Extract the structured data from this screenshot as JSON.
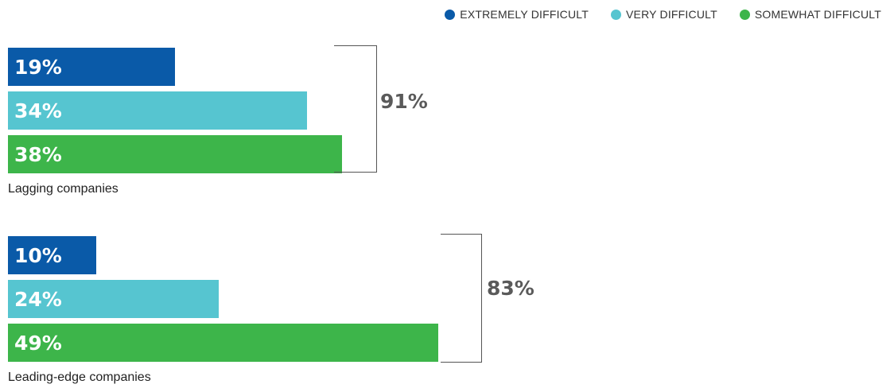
{
  "chart_data": {
    "type": "bar",
    "orientation": "horizontal",
    "xlim": [
      0,
      100
    ],
    "legend": {
      "placement": "top-right",
      "entries": [
        {
          "name": "EXTREMELY DIFFICULT",
          "color": "#0a5aa8"
        },
        {
          "name": "VERY DIFFICULT",
          "color": "#56c5d0"
        },
        {
          "name": "SOMEWHAT DIFFICULT",
          "color": "#3db54a"
        }
      ]
    },
    "groups": [
      {
        "label": "Lagging companies",
        "total_label": "91%",
        "bars": [
          {
            "series": "EXTREMELY DIFFICULT",
            "value": 19,
            "label": "19%",
            "color": "#0a5aa8"
          },
          {
            "series": "VERY DIFFICULT",
            "value": 34,
            "label": "34%",
            "color": "#56c5d0"
          },
          {
            "series": "SOMEWHAT DIFFICULT",
            "value": 38,
            "label": "38%",
            "color": "#3db54a"
          }
        ]
      },
      {
        "label": "Leading-edge companies",
        "total_label": "83%",
        "bars": [
          {
            "series": "EXTREMELY DIFFICULT",
            "value": 10,
            "label": "10%",
            "color": "#0a5aa8"
          },
          {
            "series": "VERY DIFFICULT",
            "value": 24,
            "label": "24%",
            "color": "#56c5d0"
          },
          {
            "series": "SOMEWHAT DIFFICULT",
            "value": 49,
            "label": "49%",
            "color": "#3db54a"
          }
        ]
      }
    ]
  }
}
